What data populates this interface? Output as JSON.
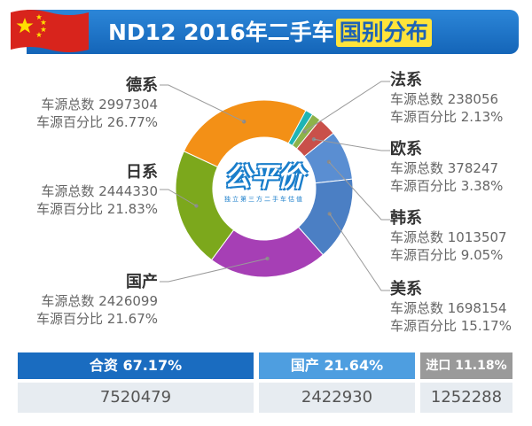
{
  "header": {
    "title_prefix": "ND12 2016年二手车",
    "title_highlight": "国别分布"
  },
  "logo": {
    "text": "公平价",
    "sub": "独立第三方二手车估值"
  },
  "colors": {
    "German": "#f39016",
    "USA": "#4b7fc4",
    "Korea": "#5a8ed2",
    "Europe": "#c9504a",
    "France": "#8db24a",
    "Teal": "#1fb4b4",
    "Japan": "#7ca81c",
    "Domestic": "#a63fb5",
    "headerBlue": "#1565b6",
    "boxBlue1": "#1a6cc0",
    "boxBlue2": "#4e9ee0",
    "boxGray": "#9a9a9a"
  },
  "chart_data": {
    "type": "pie",
    "title": "ND12 2016年二手车国别分布",
    "slices": [
      {
        "name": "德系",
        "total_label": "车源总数",
        "total": 2997304,
        "pct_label": "车源百分比",
        "pct": 26.77,
        "color_key": "German"
      },
      {
        "name": "法系",
        "total_label": "车源总数",
        "total": 238056,
        "pct_label": "车源百分比",
        "pct": 2.13,
        "color_key": "France"
      },
      {
        "name": "欧系",
        "total_label": "车源总数",
        "total": 378247,
        "pct_label": "车源百分比",
        "pct": 3.38,
        "color_key": "Europe"
      },
      {
        "name": "韩系",
        "total_label": "车源总数",
        "total": 1013507,
        "pct_label": "车源百分比",
        "pct": 9.05,
        "color_key": "Korea"
      },
      {
        "name": "美系",
        "total_label": "车源总数",
        "total": 1698154,
        "pct_label": "车源百分比",
        "pct": 15.17,
        "color_key": "USA"
      },
      {
        "name": "国产",
        "total_label": "车源总数",
        "total": 2426099,
        "pct_label": "车源百分比",
        "pct": 21.67,
        "color_key": "Domestic"
      },
      {
        "name": "日系",
        "total_label": "车源总数",
        "total": 2444330,
        "pct_label": "车源百分比",
        "pct": 21.83,
        "color_key": "Japan"
      }
    ]
  },
  "labels": {
    "german": {
      "name": "德系",
      "total": "车源总数 2997304",
      "pct": "车源百分比 26.77%"
    },
    "japan": {
      "name": "日系",
      "total": "车源总数 2444330",
      "pct": "车源百分比 21.83%"
    },
    "domestic": {
      "name": "国产",
      "total": "车源总数 2426099",
      "pct": "车源百分比 21.67%"
    },
    "france": {
      "name": "法系",
      "total": "车源总数 238056",
      "pct": "车源百分比 2.13%"
    },
    "europe": {
      "name": "欧系",
      "total": "车源总数 378247",
      "pct": "车源百分比 3.38%"
    },
    "korea": {
      "name": "韩系",
      "total": "车源总数 1013507",
      "pct": "车源百分比 9.05%"
    },
    "usa": {
      "name": "美系",
      "total": "车源总数 1698154",
      "pct": "车源百分比 15.17%"
    }
  },
  "summary": [
    {
      "label": "合资 67.17%",
      "value": "7520479"
    },
    {
      "label": "国产 21.64%",
      "value": "2422930"
    },
    {
      "label": "进口 11.18%",
      "value": "1252288"
    }
  ]
}
